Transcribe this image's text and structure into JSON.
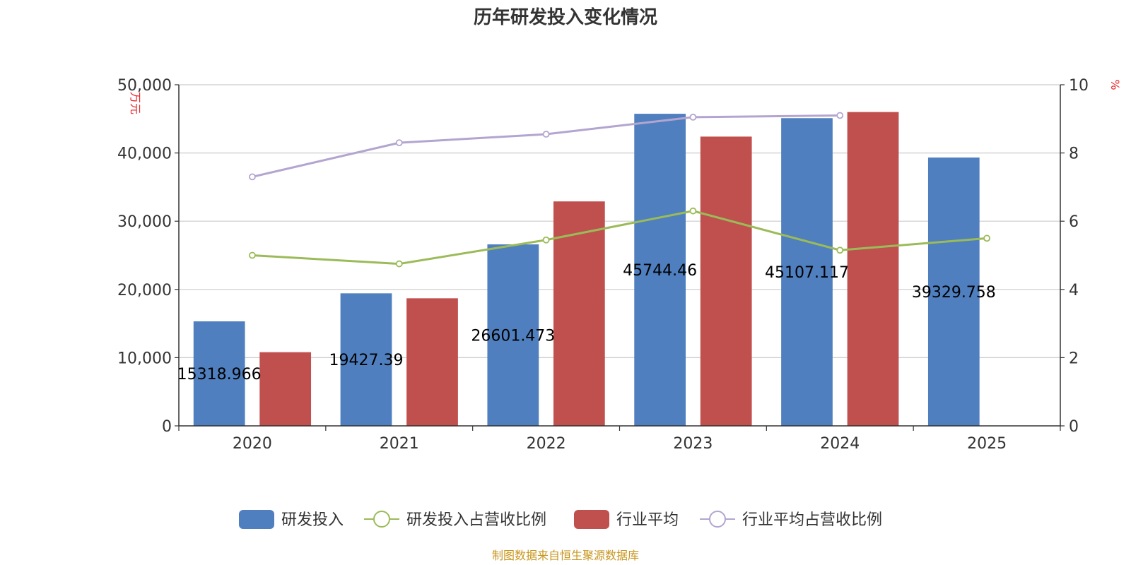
{
  "chart_data": {
    "type": "bar",
    "title": "历年研发投入变化情况",
    "categories": [
      "2020",
      "2021",
      "2022",
      "2023",
      "2024",
      "2025"
    ],
    "y_left": {
      "unit": "万元",
      "ylim": [
        0,
        50000
      ],
      "ticks": [
        "0",
        "10,000",
        "20,000",
        "30,000",
        "40,000",
        "50,000"
      ]
    },
    "y_right": {
      "unit": "%",
      "ylim": [
        0,
        10
      ],
      "ticks": [
        "0",
        "2",
        "4",
        "6",
        "8",
        "10"
      ]
    },
    "series": [
      {
        "name": "研发投入",
        "kind": "bar",
        "axis": "left",
        "color": "#4f7fbe",
        "values": [
          15318.966,
          19427.39,
          26601.473,
          45744.46,
          45107.117,
          39329.758
        ],
        "labels": [
          "15318.966",
          "19427.39",
          "26601.473",
          "45744.46",
          "45107.117",
          "39329.758"
        ]
      },
      {
        "name": "研发投入占营收比例",
        "kind": "line",
        "axis": "right",
        "color": "#9bbb59",
        "values": [
          5.0,
          4.75,
          5.45,
          6.3,
          5.15,
          5.5
        ]
      },
      {
        "name": "行业平均",
        "kind": "bar",
        "axis": "left",
        "color": "#c0504d",
        "values": [
          10800,
          18700,
          32900,
          42400,
          46000,
          null
        ]
      },
      {
        "name": "行业平均占营收比例",
        "kind": "line",
        "axis": "right",
        "color": "#b3a5d0",
        "values": [
          7.3,
          8.3,
          8.55,
          9.05,
          9.1,
          null
        ]
      }
    ],
    "grid": true,
    "legend": "bottom-center"
  },
  "source_note": "制图数据来自恒生聚源数据库"
}
